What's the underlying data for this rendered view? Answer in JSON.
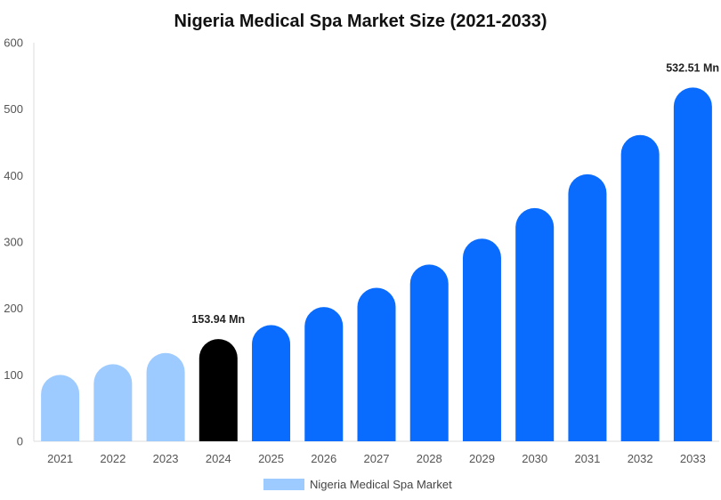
{
  "chart_data": {
    "type": "bar",
    "title": "Nigeria Medical Spa Market Size (2021-2033)",
    "categories": [
      "2021",
      "2022",
      "2023",
      "2024",
      "2025",
      "2026",
      "2027",
      "2028",
      "2029",
      "2030",
      "2031",
      "2032",
      "2033"
    ],
    "series": [
      {
        "name": "Nigeria Medical Spa Market",
        "values": [
          100,
          116,
          133,
          153.94,
          175,
          202,
          231,
          266,
          305,
          351,
          402,
          461,
          532.51
        ]
      }
    ],
    "ylim": [
      0,
      600
    ],
    "yticks": [
      0,
      100,
      200,
      300,
      400,
      500,
      600
    ],
    "grid": false,
    "legend_position": "bottom",
    "data_labels": [
      {
        "category": "2024",
        "text": "153.94 Mn"
      },
      {
        "category": "2033",
        "text": "532.51 Mn"
      }
    ],
    "colors": {
      "historical": "#9ecbff",
      "base_year": "#000000",
      "forecast": "#0a6cff",
      "legend": "#9ecbff",
      "axis": "#dddddd"
    },
    "bar_color_groups": [
      "historical",
      "historical",
      "historical",
      "base_year",
      "forecast",
      "forecast",
      "forecast",
      "forecast",
      "forecast",
      "forecast",
      "forecast",
      "forecast",
      "forecast"
    ]
  }
}
